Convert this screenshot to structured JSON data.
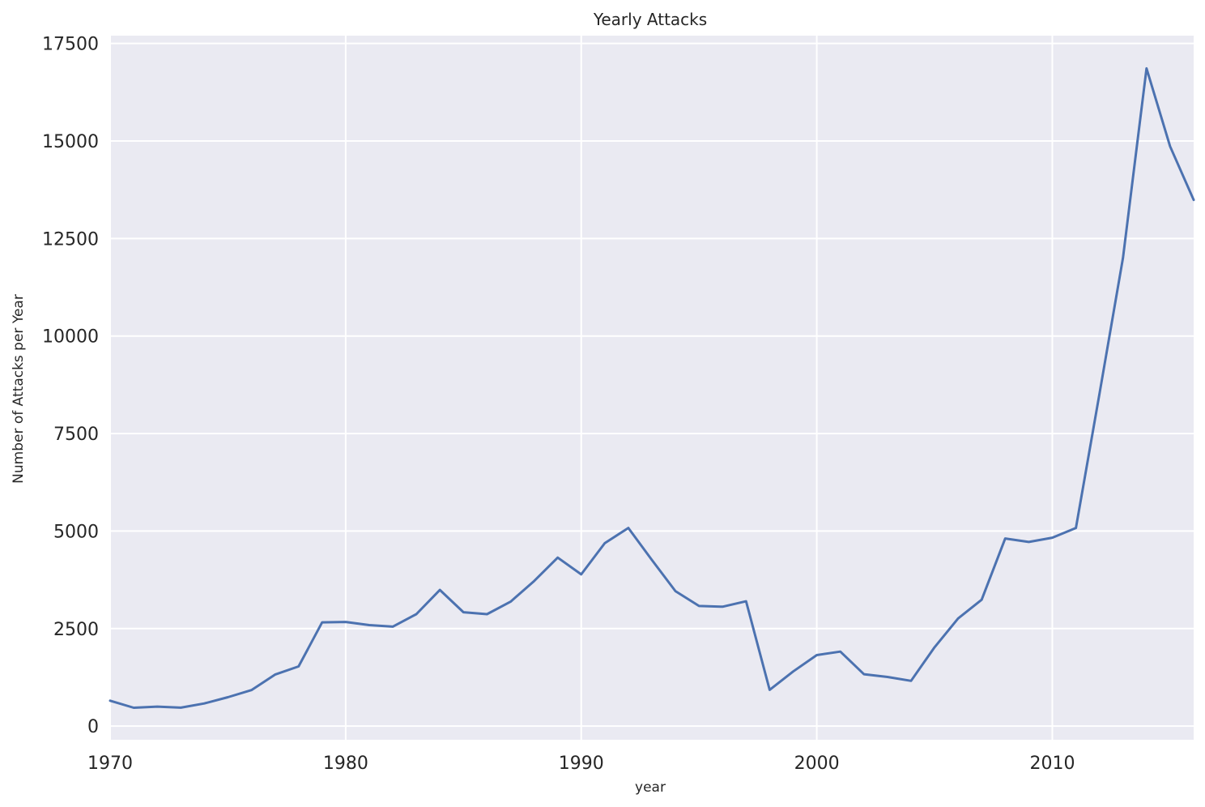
{
  "chart_data": {
    "type": "line",
    "title": "Yearly Attacks",
    "xlabel": "year",
    "ylabel": "Number of Attacks per Year",
    "xlim": [
      1970,
      2016
    ],
    "ylim": [
      -350,
      17700
    ],
    "x_ticks": [
      1970,
      1980,
      1990,
      2000,
      2010
    ],
    "y_ticks": [
      0,
      2500,
      5000,
      7500,
      10000,
      12500,
      15000,
      17500
    ],
    "grid": true,
    "legend": "none",
    "background_color": "#EAEAF2",
    "grid_color": "#FFFFFF",
    "series": [
      {
        "color": "#4C72B0",
        "x": [
          1970,
          1971,
          1972,
          1973,
          1974,
          1975,
          1976,
          1977,
          1978,
          1979,
          1980,
          1981,
          1982,
          1983,
          1984,
          1985,
          1986,
          1987,
          1988,
          1989,
          1990,
          1991,
          1992,
          1993,
          1994,
          1995,
          1996,
          1997,
          1998,
          1999,
          2000,
          2001,
          2002,
          2003,
          2004,
          2005,
          2006,
          2007,
          2008,
          2009,
          2010,
          2011,
          2012,
          2013,
          2014,
          2015,
          2016
        ],
        "values": [
          651,
          471,
          500,
          473,
          580,
          740,
          923,
          1320,
          1530,
          2660,
          2670,
          2590,
          2550,
          2870,
          3490,
          2920,
          2870,
          3190,
          3720,
          4320,
          3890,
          4690,
          5080,
          4260,
          3460,
          3080,
          3060,
          3200,
          930,
          1400,
          1820,
          1910,
          1330,
          1260,
          1160,
          2020,
          2760,
          3240,
          4810,
          4720,
          4830,
          5080,
          8520,
          12000,
          16860,
          14860,
          13490
        ]
      }
    ]
  }
}
